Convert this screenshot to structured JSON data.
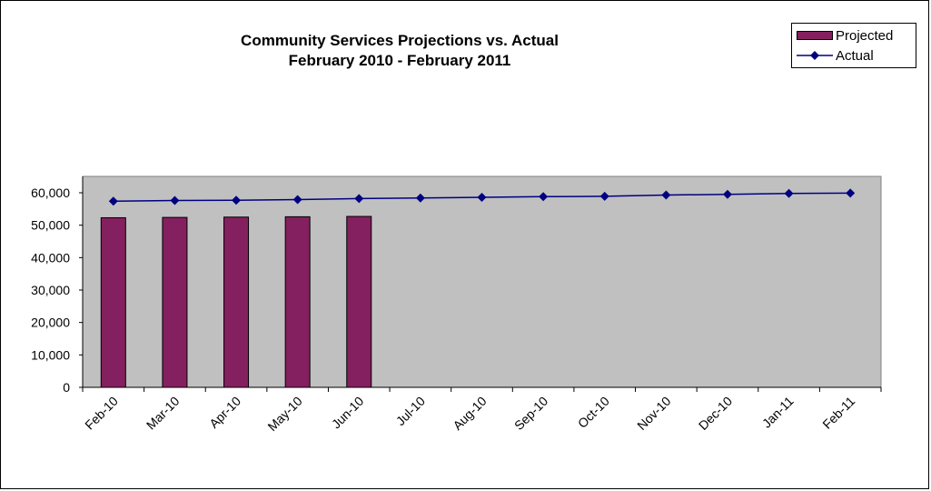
{
  "chart_data": {
    "type": "bar",
    "title": "Community Services Projections vs. Actual",
    "subtitle": "February 2010 - February 2011",
    "categories": [
      "Feb-10",
      "Mar-10",
      "Apr-10",
      "May-10",
      "Jun-10",
      "Jul-10",
      "Aug-10",
      "Sep-10",
      "Oct-10",
      "Nov-10",
      "Dec-10",
      "Jan-11",
      "Feb-11"
    ],
    "series": [
      {
        "name": "Projected",
        "type": "bar",
        "color": "#84205f",
        "values": [
          52300,
          52400,
          52500,
          52600,
          52700,
          null,
          null,
          null,
          null,
          null,
          null,
          null,
          null
        ]
      },
      {
        "name": "Actual",
        "type": "line",
        "color": "#000080",
        "values": [
          57400,
          57600,
          57700,
          57900,
          58200,
          58400,
          58600,
          58800,
          58900,
          59300,
          59500,
          59800,
          59900
        ]
      }
    ],
    "y_ticks": [
      "0",
      "10,000",
      "20,000",
      "30,000",
      "40,000",
      "50,000",
      "60,000"
    ],
    "ylim": [
      0,
      60000
    ],
    "xlabel": "",
    "ylabel": "",
    "legend_position": "top-right",
    "plot_background": "#c0c0c0",
    "grid": false
  }
}
